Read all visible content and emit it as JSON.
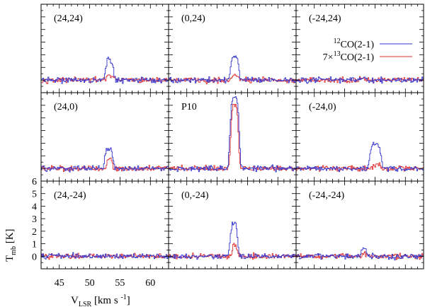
{
  "chart_data": {
    "type": "line",
    "layout": "3x3 grid of spectra sharing axes",
    "xlabel": "V",
    "xlabel_sub": "LSR",
    "xlabel_unit": "[km s",
    "xlabel_unit_sup": "-1",
    "xlabel_unit_close": "]",
    "ylabel": "T",
    "ylabel_sub": "mb",
    "ylabel_unit": "[K]",
    "xlim": [
      42,
      63
    ],
    "ylim": [
      -1,
      6
    ],
    "x_ticks": [
      45,
      50,
      55,
      60
    ],
    "x_tick_labels": [
      "45",
      "50",
      "55",
      "60"
    ],
    "y_ticks": [
      0,
      1,
      2,
      3,
      4,
      5,
      6
    ],
    "y_tick_labels": [
      "0",
      "1",
      "2",
      "3",
      "4",
      "5",
      "6"
    ],
    "legend": {
      "location": "top-right panel",
      "entries": [
        {
          "label_pre": "",
          "label_sup": "12",
          "label_post": "CO(2-1)",
          "color": "#3333cc"
        },
        {
          "label_pre": "7×",
          "label_sup": "13",
          "label_post": "CO(2-1)",
          "color": "#e03030"
        }
      ]
    },
    "series_colors": {
      "co12": "#3333cc",
      "co13": "#e03030"
    },
    "noise_rms_K": 0.15,
    "panels": [
      {
        "label": "(24,24)",
        "row": 0,
        "col": 0,
        "co12": {
          "peak_K": 1.65,
          "center_kms": 53.2,
          "width_kms": 0.7
        },
        "co13": {
          "peak_K": 0.35,
          "center_kms": 53.3,
          "width_kms": 0.6
        }
      },
      {
        "label": "(0,24)",
        "row": 0,
        "col": 1,
        "co12": {
          "peak_K": 1.85,
          "center_kms": 52.8,
          "width_kms": 0.75
        },
        "co13": {
          "peak_K": 0.4,
          "center_kms": 52.9,
          "width_kms": 0.6
        }
      },
      {
        "label": "(-24,24)",
        "row": 0,
        "col": 2,
        "co12": {
          "peak_K": 0.2,
          "center_kms": 53.0,
          "width_kms": 0.6
        },
        "co13": {
          "peak_K": 0.1,
          "center_kms": 53.0,
          "width_kms": 0.6
        }
      },
      {
        "label": "(24,0)",
        "row": 1,
        "col": 0,
        "co12": {
          "peak_K": 1.55,
          "center_kms": 53.1,
          "width_kms": 0.75
        },
        "co13": {
          "peak_K": 0.8,
          "center_kms": 53.2,
          "width_kms": 0.5
        }
      },
      {
        "label": "P10",
        "row": 1,
        "col": 1,
        "co12": {
          "peak_K": 5.6,
          "center_kms": 52.8,
          "width_kms": 0.85
        },
        "co13": {
          "peak_K": 5.1,
          "center_kms": 52.8,
          "width_kms": 0.7
        }
      },
      {
        "label": "(-24,0)",
        "row": 1,
        "col": 2,
        "co12": {
          "peak_K": 1.95,
          "center_kms": 55.0,
          "width_kms": 1.0
        },
        "co13": {
          "peak_K": 0.3,
          "center_kms": 55.2,
          "width_kms": 0.6
        }
      },
      {
        "label": "(24,-24)",
        "row": 2,
        "col": 0,
        "co12": {
          "peak_K": 0.0,
          "center_kms": 53.0,
          "width_kms": 0.6
        },
        "co13": {
          "peak_K": 0.0,
          "center_kms": 53.0,
          "width_kms": 0.6
        }
      },
      {
        "label": "(0,-24)",
        "row": 2,
        "col": 1,
        "co12": {
          "peak_K": 2.6,
          "center_kms": 52.7,
          "width_kms": 0.7
        },
        "co13": {
          "peak_K": 0.9,
          "center_kms": 52.8,
          "width_kms": 0.5
        }
      },
      {
        "label": "(-24,-24)",
        "row": 2,
        "col": 2,
        "co12": {
          "peak_K": 0.65,
          "center_kms": 53.1,
          "width_kms": 0.5
        },
        "co13": {
          "peak_K": 0.2,
          "center_kms": 53.1,
          "width_kms": 0.5
        }
      }
    ]
  }
}
